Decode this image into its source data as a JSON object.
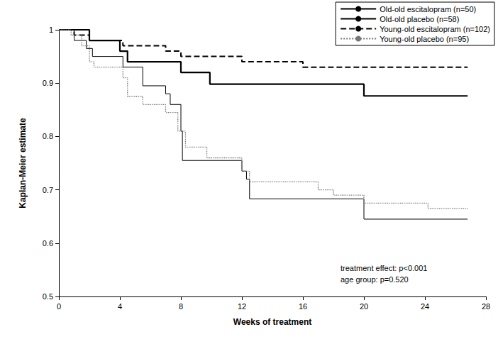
{
  "chart_data": {
    "type": "line",
    "x_label": "Weeks of treatment",
    "y_label": "Kaplan-Meier estimate",
    "xlim": [
      0,
      28
    ],
    "xticks": [
      0,
      4,
      8,
      12,
      16,
      20,
      24,
      28
    ],
    "ylim": [
      0.5,
      1
    ],
    "yticks": [
      0.5,
      0.6,
      0.7,
      0.8,
      0.9,
      1
    ],
    "grid": false,
    "legend": "upper right",
    "annotations": [
      "treatment effect: p<0.001",
      "age group: p=0.520"
    ],
    "series": [
      {
        "name": "Old-old escitalopram (n=50)",
        "color": "#000000",
        "line_style": "solid",
        "x": [
          0,
          2,
          4,
          4.5,
          8,
          9.9,
          20,
          26.8
        ],
        "values": [
          1,
          0.98,
          0.96,
          0.94,
          0.92,
          0.898,
          0.876,
          0.876
        ]
      },
      {
        "name": "Old-old placebo (n=58)",
        "color": "#000000",
        "line_style": "solid",
        "x": [
          0,
          1,
          1.8,
          2.2,
          4.2,
          5.5,
          7,
          7.3,
          8,
          8.1,
          12,
          12.3,
          12.5,
          20,
          26.8
        ],
        "values": [
          1,
          0.98,
          0.965,
          0.95,
          0.93,
          0.895,
          0.88,
          0.86,
          0.81,
          0.755,
          0.735,
          0.72,
          0.683,
          0.645,
          0.645
        ]
      },
      {
        "name": "Young-old escitalopram (n=102)",
        "color": "#000000",
        "line_style": "dashed",
        "x": [
          0,
          1,
          2,
          4.2,
          7,
          8,
          12,
          16,
          26.8
        ],
        "values": [
          1,
          0.99,
          0.98,
          0.97,
          0.96,
          0.95,
          0.94,
          0.93,
          0.93
        ]
      },
      {
        "name": "Young-old placebo (n=95)",
        "color": "#777777",
        "line_style": "dotted",
        "x": [
          0,
          0.8,
          1.5,
          2,
          2.3,
          4.2,
          4.5,
          5.5,
          7,
          7.8,
          8.3,
          9.7,
          12,
          12.5,
          17,
          18,
          20,
          24.2,
          26.8
        ],
        "values": [
          1,
          0.99,
          0.97,
          0.94,
          0.93,
          0.91,
          0.875,
          0.86,
          0.845,
          0.81,
          0.78,
          0.76,
          0.735,
          0.715,
          0.7,
          0.69,
          0.675,
          0.665,
          0.665
        ]
      }
    ]
  }
}
